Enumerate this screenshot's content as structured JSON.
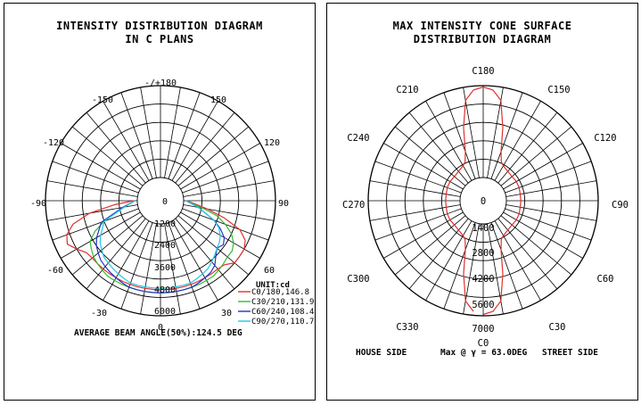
{
  "chart_data": [
    {
      "type": "polar",
      "title_lines": [
        "INTENSITY DISTRIBUTION DIAGRAM",
        "IN C PLANS"
      ],
      "angle_labels": [
        "-/+180",
        "-150",
        "150",
        "-120",
        "120",
        "-90",
        "90",
        "-60",
        "60",
        "-30",
        "30",
        "0"
      ],
      "radial_labels": [
        "0",
        "1200",
        "2400",
        "3600",
        "4800",
        "6000"
      ],
      "radial_max": 6000,
      "unit_label": "UNIT:cd",
      "grid": true,
      "legend_position": "bottom-right",
      "series": [
        {
          "name": "C0/180,146.8",
          "color": "#e03030",
          "angles": [
            -90,
            -85,
            -80,
            -75,
            -70,
            -65,
            -60,
            -55,
            -50,
            -45,
            -40,
            -35,
            -30,
            -25,
            -20,
            -15,
            -10,
            -5,
            0,
            5,
            10,
            15,
            20,
            25,
            30,
            35,
            40,
            45,
            50,
            55,
            60,
            65,
            70,
            75,
            80,
            85,
            90
          ],
          "values": [
            250,
            1500,
            3200,
            4400,
            5000,
            5200,
            4800,
            4400,
            4300,
            4300,
            4300,
            4300,
            4300,
            4300,
            4300,
            4300,
            4300,
            4300,
            4300,
            4300,
            4300,
            4300,
            4300,
            4300,
            4300,
            4300,
            4300,
            4400,
            4800,
            4800,
            4800,
            4600,
            4000,
            2800,
            1600,
            700,
            200
          ]
        },
        {
          "name": "C30/210,131.9",
          "color": "#33bb33",
          "angles": [
            -90,
            -80,
            -70,
            -65,
            -60,
            -55,
            -50,
            -45,
            -40,
            -35,
            -30,
            -25,
            -20,
            -15,
            -10,
            -5,
            0,
            5,
            10,
            15,
            20,
            25,
            30,
            35,
            40,
            45,
            50,
            55,
            60,
            65,
            70,
            75,
            80,
            90
          ],
          "values": [
            150,
            900,
            2400,
            3200,
            3800,
            4000,
            4200,
            4300,
            4400,
            4500,
            4500,
            4500,
            4500,
            4500,
            4500,
            4500,
            4500,
            4500,
            4500,
            4500,
            4500,
            4500,
            4500,
            4500,
            4400,
            4300,
            4200,
            4200,
            4000,
            3600,
            3000,
            2300,
            1300,
            150
          ]
        },
        {
          "name": "C60/240,108.4",
          "color": "#2233cc",
          "angles": [
            -90,
            -80,
            -70,
            -60,
            -55,
            -50,
            -45,
            -40,
            -35,
            -30,
            -25,
            -20,
            -15,
            -10,
            -5,
            0,
            5,
            10,
            15,
            20,
            25,
            30,
            35,
            40,
            45,
            50,
            55,
            60,
            65,
            70,
            80,
            90
          ],
          "values": [
            150,
            1000,
            2600,
            3300,
            3600,
            3800,
            4000,
            4100,
            4200,
            4300,
            4400,
            4500,
            4500,
            4500,
            4500,
            4500,
            4500,
            4500,
            4500,
            4500,
            4400,
            4300,
            4200,
            4000,
            3600,
            3300,
            3500,
            3300,
            2800,
            2200,
            1000,
            150
          ]
        },
        {
          "name": "C90/270,110.7",
          "color": "#22c8e8",
          "angles": [
            -90,
            -80,
            -70,
            -60,
            -55,
            -50,
            -45,
            -40,
            -35,
            -30,
            -25,
            -20,
            -15,
            -10,
            -5,
            0,
            5,
            10,
            15,
            20,
            25,
            30,
            35,
            40,
            45,
            50,
            55,
            60,
            65,
            70,
            80,
            90
          ],
          "values": [
            150,
            900,
            2400,
            3000,
            3300,
            3500,
            3700,
            3800,
            3900,
            4000,
            4100,
            4200,
            4200,
            4200,
            4200,
            4200,
            4200,
            4200,
            4200,
            4200,
            4100,
            4000,
            3900,
            3700,
            3500,
            3300,
            3200,
            3000,
            2700,
            2200,
            1000,
            150
          ]
        }
      ],
      "footer": "AVERAGE BEAM ANGLE(50%):124.5 DEG"
    },
    {
      "type": "polar",
      "title_lines": [
        "MAX INTENSITY CONE SURFACE",
        "DISTRIBUTION DIAGRAM"
      ],
      "angle_labels": [
        "C180",
        "C210",
        "C150",
        "C240",
        "C120",
        "C270",
        "C90",
        "C300",
        "C60",
        "C330",
        "C30",
        "C0"
      ],
      "radial_labels": [
        "0",
        "1400",
        "2800",
        "4200",
        "5600",
        "7000"
      ],
      "radial_max": 7000,
      "grid": true,
      "series": [
        {
          "name": "",
          "color": "#e03030",
          "angles": [
            0,
            5,
            10,
            15,
            20,
            25,
            30,
            40,
            50,
            60,
            70,
            80,
            90,
            100,
            110,
            120,
            130,
            140,
            150,
            155,
            160,
            165,
            170,
            175,
            180,
            185,
            190,
            195,
            200,
            205,
            210,
            220,
            230,
            240,
            250,
            260,
            270,
            280,
            290,
            300,
            310,
            320,
            330,
            335,
            340,
            345,
            350,
            355
          ],
          "values": [
            6900,
            6700,
            6000,
            4000,
            2200,
            1500,
            1300,
            1150,
            1100,
            1150,
            1150,
            1100,
            1100,
            1100,
            1150,
            1150,
            1100,
            1150,
            1300,
            1500,
            2200,
            4000,
            6000,
            6700,
            6900,
            6700,
            6000,
            4000,
            2200,
            1500,
            1300,
            1150,
            1100,
            1150,
            1150,
            1100,
            1100,
            1100,
            1150,
            1150,
            1100,
            1150,
            1300,
            1500,
            2200,
            4000,
            6000,
            6700
          ]
        }
      ],
      "footer_left": "HOUSE SIDE",
      "footer_mid": "Max @ γ = 63.0DEG",
      "footer_right": "STREET SIDE"
    }
  ]
}
